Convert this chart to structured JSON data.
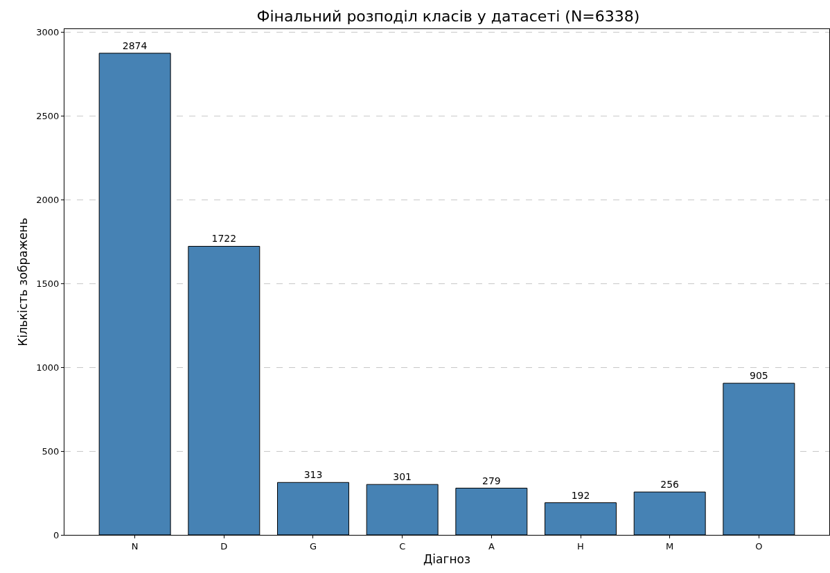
{
  "chart_data": {
    "type": "bar",
    "title": "Фінальний розподіл класів у датасеті (N=6338)",
    "xlabel": "Діагноз",
    "ylabel": "Кількість зображень",
    "categories": [
      "N",
      "D",
      "G",
      "C",
      "A",
      "H",
      "M",
      "O"
    ],
    "values": [
      2874,
      1722,
      313,
      301,
      279,
      192,
      256,
      905
    ],
    "color": "#4682b4",
    "ylim": [
      0,
      3018
    ],
    "yticks": [
      0,
      500,
      1000,
      1500,
      2000,
      2500,
      3000
    ],
    "grid": "y",
    "data_labels": true
  }
}
